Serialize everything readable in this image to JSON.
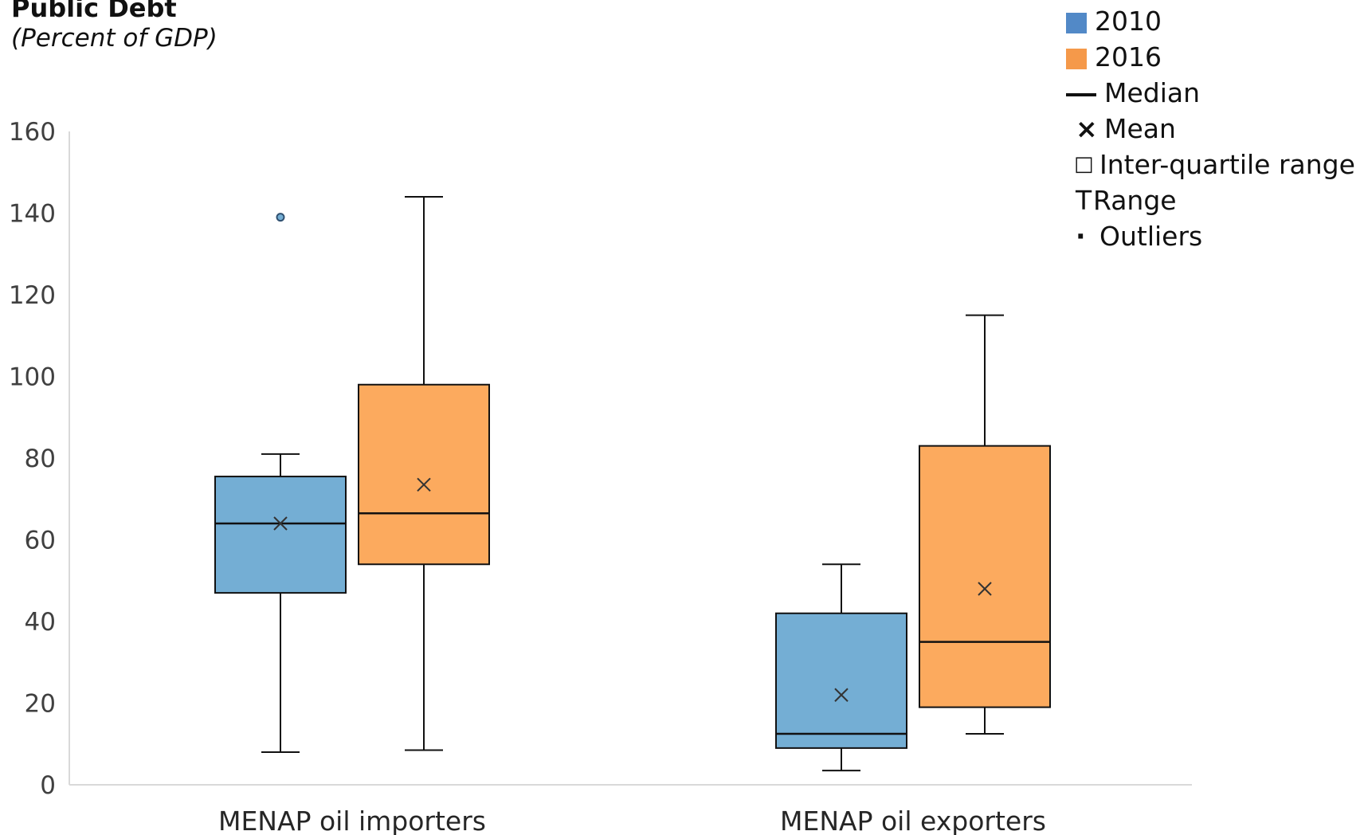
{
  "chart_data": {
    "type": "box",
    "title": "Public Debt",
    "subtitle": "(Percent of GDP)",
    "categories": [
      "MENAP oil importers",
      "MENAP oil exporters"
    ],
    "ylim": [
      0,
      160
    ],
    "yticks": [
      0,
      20,
      40,
      60,
      80,
      100,
      120,
      140,
      160
    ],
    "grid": false,
    "legend_position": "top-right",
    "series": [
      {
        "name": "2010",
        "color": "#74aed4",
        "swatch_color": "#5289c7",
        "boxes": [
          {
            "min": 8,
            "q1": 47,
            "median": 64,
            "q3": 75.5,
            "max": 81,
            "mean": 64,
            "outliers": [
              139
            ]
          },
          {
            "min": 3.5,
            "q1": 9,
            "median": 12.5,
            "q3": 42,
            "max": 54,
            "mean": 22,
            "outliers": []
          }
        ]
      },
      {
        "name": "2016",
        "color": "#fcaa5e",
        "swatch_color": "#f5994a",
        "boxes": [
          {
            "min": 8.5,
            "q1": 54,
            "median": 66.5,
            "q3": 98,
            "max": 144,
            "mean": 73.5,
            "outliers": []
          },
          {
            "min": 12.5,
            "q1": 19,
            "median": 35,
            "q3": 83,
            "max": 115,
            "mean": 48,
            "outliers": []
          }
        ]
      }
    ]
  },
  "legend": {
    "median_label": "Median",
    "mean_symbol": "×",
    "mean_label": "Mean",
    "iqr_symbol": "□",
    "iqr_label": "Inter-quartile range",
    "range_symbol": "T",
    "range_label": "Range",
    "outliers_symbol": "·",
    "outliers_label": "Outliers"
  }
}
